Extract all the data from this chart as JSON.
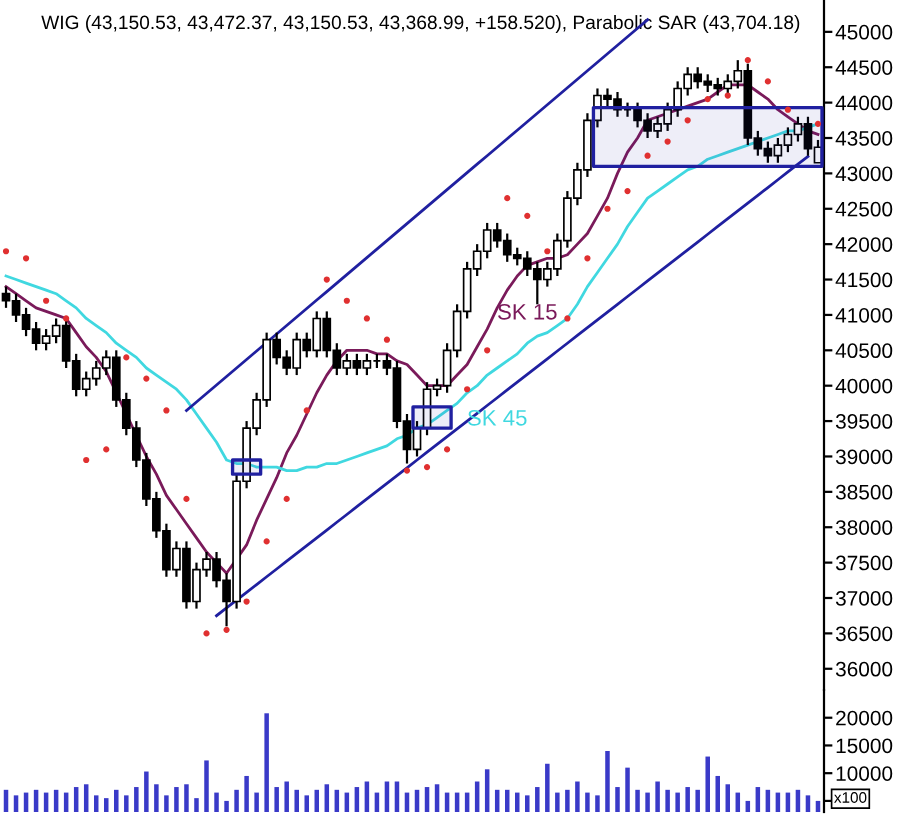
{
  "chart_data": [
    {
      "type": "candlestick",
      "title": "WIG (43,150.53, 43,472.37, 43,150.53, 43,368.99, +158.520), Parabolic SAR (43,704.18)",
      "color": "#000000",
      "tick_labels": "y",
      "categories": [
        null,
        null,
        null,
        null,
        null,
        null,
        null,
        null,
        null,
        null,
        null,
        null,
        null,
        null,
        null,
        null,
        null,
        null,
        null,
        null,
        null,
        null,
        null,
        null,
        null,
        null,
        null,
        null,
        null,
        null,
        null,
        null,
        null,
        null,
        null,
        null,
        null,
        null,
        null,
        null,
        null,
        null,
        null,
        null,
        null,
        null,
        null,
        null,
        null,
        null,
        null,
        null,
        null,
        null,
        null,
        null,
        null,
        null,
        null,
        null,
        null,
        null,
        null,
        null,
        null,
        null,
        null,
        null,
        null,
        null,
        null,
        null,
        null,
        null,
        null,
        null,
        null,
        null,
        null,
        null,
        null,
        null
      ],
      "ohlc": [
        [
          41300,
          41400,
          41100,
          41200
        ],
        [
          41200,
          41300,
          40900,
          41000
        ],
        [
          41000,
          41100,
          40700,
          40800
        ],
        [
          40800,
          40900,
          40500,
          40600
        ],
        [
          40600,
          40800,
          40500,
          40700
        ],
        [
          40700,
          40950,
          40600,
          40850
        ],
        [
          40850,
          40950,
          40250,
          40350
        ],
        [
          40350,
          40450,
          39850,
          39950
        ],
        [
          39950,
          40200,
          39850,
          40100
        ],
        [
          40100,
          40350,
          40000,
          40250
        ],
        [
          40250,
          40500,
          40150,
          40400
        ],
        [
          40400,
          40500,
          39700,
          39800
        ],
        [
          39800,
          39900,
          39300,
          39400
        ],
        [
          39400,
          39500,
          38850,
          38950
        ],
        [
          38950,
          39050,
          38300,
          38400
        ],
        [
          38400,
          38500,
          37850,
          37950
        ],
        [
          37950,
          38050,
          37300,
          37400
        ],
        [
          37400,
          37800,
          37300,
          37700
        ],
        [
          37700,
          37800,
          36850,
          36950
        ],
        [
          36950,
          37500,
          36850,
          37400
        ],
        [
          37400,
          37650,
          37300,
          37550
        ],
        [
          37550,
          37650,
          37150,
          37250
        ],
        [
          37250,
          37350,
          36600,
          36950
        ],
        [
          36950,
          38750,
          36850,
          38650
        ],
        [
          38650,
          39500,
          38550,
          39400
        ],
        [
          39400,
          39900,
          39300,
          39800
        ],
        [
          39800,
          40750,
          39700,
          40650
        ],
        [
          40650,
          40750,
          40300,
          40400
        ],
        [
          40400,
          40500,
          40150,
          40250
        ],
        [
          40250,
          40750,
          40150,
          40650
        ],
        [
          40650,
          40750,
          40400,
          40500
        ],
        [
          40500,
          41050,
          40400,
          40950
        ],
        [
          40950,
          41050,
          40400,
          40500
        ],
        [
          40500,
          40600,
          40150,
          40250
        ],
        [
          40250,
          40450,
          40150,
          40350
        ],
        [
          40350,
          40450,
          40150,
          40250
        ],
        [
          40250,
          40450,
          40150,
          40350
        ],
        [
          40350,
          40450,
          40250,
          40350
        ],
        [
          40350,
          40450,
          40150,
          40250
        ],
        [
          40250,
          40350,
          39400,
          39500
        ],
        [
          39500,
          39600,
          38900,
          39100
        ],
        [
          39100,
          39500,
          39000,
          39400
        ],
        [
          39400,
          40050,
          39300,
          39950
        ],
        [
          39950,
          40100,
          39850,
          40000
        ],
        [
          40000,
          40600,
          39900,
          40500
        ],
        [
          40500,
          41150,
          40400,
          41050
        ],
        [
          41050,
          41750,
          40950,
          41650
        ],
        [
          41650,
          42000,
          41550,
          41900
        ],
        [
          41900,
          42300,
          41800,
          42200
        ],
        [
          42200,
          42300,
          41950,
          42050
        ],
        [
          42050,
          42150,
          41750,
          41850
        ],
        [
          41850,
          41950,
          41700,
          41800
        ],
        [
          41800,
          41900,
          41550,
          41650
        ],
        [
          41650,
          41750,
          41150,
          41500
        ],
        [
          41500,
          41750,
          41400,
          41650
        ],
        [
          41650,
          42150,
          41550,
          42050
        ],
        [
          42050,
          42750,
          41950,
          42650
        ],
        [
          42650,
          43150,
          42550,
          43050
        ],
        [
          43050,
          43850,
          42950,
          43750
        ],
        [
          43750,
          44200,
          43650,
          44100
        ],
        [
          44100,
          44200,
          43950,
          44050
        ],
        [
          44050,
          44150,
          43800,
          43900
        ],
        [
          43900,
          44000,
          43800,
          43900
        ],
        [
          43900,
          44000,
          43650,
          43750
        ],
        [
          43750,
          43850,
          43500,
          43600
        ],
        [
          43600,
          43800,
          43500,
          43700
        ],
        [
          43700,
          44000,
          43600,
          43900
        ],
        [
          43900,
          44300,
          43800,
          44200
        ],
        [
          44200,
          44500,
          44100,
          44400
        ],
        [
          44400,
          44500,
          44200,
          44300
        ],
        [
          44300,
          44400,
          44150,
          44250
        ],
        [
          44250,
          44350,
          44100,
          44200
        ],
        [
          44200,
          44400,
          44100,
          44300
        ],
        [
          44300,
          44600,
          44200,
          44450
        ],
        [
          44450,
          44550,
          43400,
          43500
        ],
        [
          43500,
          43600,
          43250,
          43350
        ],
        [
          43350,
          43450,
          43150,
          43250
        ],
        [
          43250,
          43500,
          43150,
          43400
        ],
        [
          43400,
          43650,
          43300,
          43550
        ],
        [
          43550,
          43800,
          43450,
          43700
        ],
        [
          43700,
          43800,
          43250,
          43350
        ],
        [
          43150.53,
          43472.37,
          43150.53,
          43368.99
        ]
      ],
      "ylim": [
        35700,
        45450
      ],
      "yticks": [
        36000,
        36500,
        37000,
        37500,
        38000,
        38500,
        39000,
        39500,
        40000,
        40500,
        41000,
        41500,
        42000,
        42500,
        43000,
        43500,
        44000,
        44500,
        45000
      ],
      "series": [
        {
          "name": "SK 15",
          "type": "line",
          "color": "#7a1a5a",
          "values": [
            41400,
            41300,
            41200,
            41100,
            41050,
            41000,
            40950,
            40750,
            40550,
            40400,
            40200,
            39900,
            39600,
            39300,
            39000,
            38750,
            38450,
            38250,
            38050,
            37850,
            37650,
            37500,
            37350,
            37550,
            37750,
            38100,
            38400,
            38700,
            39050,
            39300,
            39600,
            39900,
            40150,
            40350,
            40500,
            40500,
            40500,
            40450,
            40450,
            40350,
            40300,
            40150,
            40000,
            40000,
            40000,
            40150,
            40300,
            40550,
            40800,
            41100,
            41350,
            41550,
            41700,
            41750,
            41800,
            41800,
            41850,
            42000,
            42150,
            42400,
            42650,
            43000,
            43300,
            43500,
            43750,
            43800,
            43850,
            43900,
            43950,
            44000,
            44050,
            44150,
            44250,
            44250,
            44250,
            44150,
            44050,
            43900,
            43800,
            43700,
            43600,
            43550
          ]
        },
        {
          "name": "SK 45",
          "type": "line",
          "color": "#40d8e0",
          "values": [
            41550,
            41500,
            41450,
            41400,
            41350,
            41300,
            41200,
            41100,
            40950,
            40850,
            40750,
            40600,
            40500,
            40400,
            40250,
            40150,
            40050,
            39950,
            39800,
            39600,
            39400,
            39200,
            38950,
            38900,
            38900,
            38850,
            38850,
            38850,
            38800,
            38800,
            38850,
            38850,
            38900,
            38900,
            38950,
            39000,
            39050,
            39100,
            39150,
            39250,
            39300,
            39400,
            39450,
            39550,
            39650,
            39750,
            39900,
            40000,
            40150,
            40250,
            40350,
            40450,
            40600,
            40700,
            40750,
            40850,
            40950,
            41150,
            41400,
            41600,
            41800,
            42000,
            42250,
            42450,
            42650,
            42750,
            42850,
            42950,
            43050,
            43100,
            43200,
            43250,
            43300,
            43350,
            43400,
            43450,
            43500,
            43550,
            43600,
            43600,
            43650,
            43700
          ]
        },
        {
          "type": "scatter",
          "marker": "circle",
          "color": "#e03030",
          "values": [
            41900,
            null,
            41800,
            null,
            41200,
            null,
            40950,
            null,
            38950,
            null,
            39100,
            null,
            40400,
            null,
            40100,
            null,
            39650,
            null,
            38400,
            null,
            36500,
            null,
            36550,
            null,
            36950,
            null,
            37800,
            null,
            38400,
            null,
            39650,
            null,
            41500,
            null,
            41200,
            null,
            40950,
            null,
            40650,
            null,
            38800,
            null,
            38850,
            null,
            39100,
            null,
            39950,
            null,
            40500,
            null,
            42650,
            null,
            42400,
            null,
            41900,
            null,
            40950,
            null,
            41800,
            null,
            42500,
            null,
            42750,
            null,
            43250,
            null,
            43450,
            null,
            43750,
            null,
            44050,
            null,
            44100,
            null,
            44600,
            null,
            44300,
            null,
            43900,
            null,
            null,
            43700
          ]
        },
        {
          "type": "line",
          "color": "#2020a0",
          "values": [
            null,
            null,
            null,
            null,
            null,
            null,
            null,
            null,
            null,
            null,
            null,
            null,
            null,
            null,
            null,
            null,
            null,
            null,
            39650,
            39770,
            39890,
            40010,
            40130,
            40250,
            40370,
            40490,
            40610,
            40730,
            40850,
            40970,
            41090,
            41210,
            41330,
            41450,
            41570,
            41690,
            41810,
            41930,
            42050,
            42170,
            42290,
            42410,
            42530,
            42650,
            42770,
            42890,
            43010,
            43130,
            43250,
            43370,
            43490,
            43610,
            43730,
            43850,
            43970,
            44090,
            44210,
            44330,
            44450,
            44570,
            44690,
            44810,
            44930,
            45050,
            45170,
            null,
            null,
            null,
            null,
            null,
            null,
            null,
            null,
            null,
            null,
            null,
            null,
            null,
            null,
            null,
            null,
            null
          ]
        },
        {
          "type": "line",
          "color": "#2020a0",
          "values": [
            null,
            null,
            null,
            null,
            null,
            null,
            null,
            null,
            null,
            null,
            null,
            null,
            null,
            null,
            null,
            null,
            null,
            null,
            null,
            null,
            null,
            36750,
            36860,
            36970,
            37080,
            37190,
            37300,
            37410,
            37520,
            37630,
            37740,
            37850,
            37960,
            38070,
            38180,
            38290,
            38400,
            38510,
            38620,
            38730,
            38840,
            38950,
            39060,
            39170,
            39280,
            39390,
            39500,
            39610,
            39720,
            39830,
            39940,
            40050,
            40160,
            40270,
            40380,
            40490,
            40600,
            40710,
            40820,
            40930,
            41040,
            41150,
            41260,
            41370,
            41480,
            41590,
            41700,
            41810,
            41920,
            42030,
            42140,
            42250,
            42360,
            42470,
            42580,
            42690,
            42800,
            42910,
            43020,
            43130,
            43240,
            null
          ]
        },
        {
          "type": "line",
          "color": "#2020a0",
          "values": [
            null,
            null,
            null,
            null,
            null,
            null,
            null,
            null,
            null,
            null,
            null,
            null,
            null,
            null,
            null,
            null,
            null,
            null,
            null,
            null,
            null,
            null,
            null,
            null,
            null,
            null,
            null,
            null,
            null,
            null,
            null,
            null,
            null,
            null,
            null,
            null,
            null,
            null,
            null,
            null,
            null,
            null,
            null,
            null,
            null,
            null,
            null,
            null,
            null,
            null,
            null,
            null,
            null,
            null,
            null,
            null,
            null,
            null,
            null,
            null,
            null,
            null,
            null,
            null,
            null,
            null,
            null,
            null,
            null,
            null,
            null,
            null,
            null,
            null,
            null,
            null,
            null,
            null,
            null,
            null,
            null,
            null
          ],
          "lower": [
            null,
            null,
            null,
            null,
            null,
            null,
            null,
            null,
            null,
            null,
            null,
            null,
            null,
            null,
            null,
            null,
            null,
            null,
            null,
            null,
            null,
            null,
            null,
            38750,
            38750,
            38750,
            null,
            null,
            null,
            null,
            null,
            null,
            null,
            null,
            null,
            null,
            null,
            null,
            null,
            null,
            null,
            null,
            null,
            null,
            null,
            null,
            null,
            null,
            null,
            null,
            null,
            null,
            null,
            null,
            null,
            null,
            null,
            null,
            null,
            null,
            null,
            null,
            null,
            null,
            null,
            null,
            null,
            null,
            null,
            null,
            null,
            null,
            null,
            null,
            null,
            null,
            null,
            null,
            null,
            null,
            null,
            null
          ],
          "upper": [
            null,
            null,
            null,
            null,
            null,
            null,
            null,
            null,
            null,
            null,
            null,
            null,
            null,
            null,
            null,
            null,
            null,
            null,
            null,
            null,
            null,
            null,
            null,
            38950,
            38950,
            38950,
            null,
            null,
            null,
            null,
            null,
            null,
            null,
            null,
            null,
            null,
            null,
            null,
            null,
            null,
            null,
            null,
            null,
            null,
            null,
            null,
            null,
            null,
            null,
            null,
            null,
            null,
            null,
            null,
            null,
            null,
            null,
            null,
            null,
            null,
            null,
            null,
            null,
            null,
            null,
            null,
            null,
            null,
            null,
            null,
            null,
            null,
            null,
            null,
            null,
            null,
            null,
            null,
            null,
            null,
            null,
            null
          ]
        },
        {
          "type": "line",
          "color": "#2020a0",
          "values": [
            null,
            null,
            null,
            null,
            null,
            null,
            null,
            null,
            null,
            null,
            null,
            null,
            null,
            null,
            null,
            null,
            null,
            null,
            null,
            null,
            null,
            null,
            null,
            null,
            null,
            null,
            null,
            null,
            null,
            null,
            null,
            null,
            null,
            null,
            null,
            null,
            null,
            null,
            null,
            null,
            null,
            null,
            null,
            null,
            null,
            null,
            null,
            null,
            null,
            null,
            null,
            null,
            null,
            null,
            null,
            null,
            null,
            null,
            null,
            null,
            null,
            null,
            null,
            null,
            null,
            null,
            null,
            null,
            null,
            null,
            null,
            null,
            null,
            null,
            null,
            null,
            null,
            null,
            null,
            null,
            null,
            null
          ],
          "lower": [
            null,
            null,
            null,
            null,
            null,
            null,
            null,
            null,
            null,
            null,
            null,
            null,
            null,
            null,
            null,
            null,
            null,
            null,
            null,
            null,
            null,
            null,
            null,
            null,
            null,
            null,
            null,
            null,
            null,
            null,
            null,
            null,
            null,
            null,
            null,
            null,
            null,
            null,
            null,
            null,
            null,
            39400,
            39400,
            39400,
            39400,
            null,
            null,
            null,
            null,
            null,
            null,
            null,
            null,
            null,
            null,
            null,
            null,
            null,
            null,
            null,
            null,
            null,
            null,
            null,
            null,
            null,
            null,
            null,
            null,
            null,
            null,
            null,
            null,
            null,
            null,
            null,
            null,
            null,
            null,
            null,
            null,
            null
          ],
          "upper": [
            null,
            null,
            null,
            null,
            null,
            null,
            null,
            null,
            null,
            null,
            null,
            null,
            null,
            null,
            null,
            null,
            null,
            null,
            null,
            null,
            null,
            null,
            null,
            null,
            null,
            null,
            null,
            null,
            null,
            null,
            null,
            null,
            null,
            null,
            null,
            null,
            null,
            null,
            null,
            null,
            null,
            39700,
            39700,
            39700,
            39700,
            null,
            null,
            null,
            null,
            null,
            null,
            null,
            null,
            null,
            null,
            null,
            null,
            null,
            null,
            null,
            null,
            null,
            null,
            null,
            null,
            null,
            null,
            null,
            null,
            null,
            null,
            null,
            null,
            null,
            null,
            null,
            null,
            null,
            null,
            null,
            null,
            null
          ]
        },
        {
          "type": "line",
          "color": "#2020a0",
          "values": [
            null,
            null,
            null,
            null,
            null,
            null,
            null,
            null,
            null,
            null,
            null,
            null,
            null,
            null,
            null,
            null,
            null,
            null,
            null,
            null,
            null,
            null,
            null,
            null,
            null,
            null,
            null,
            null,
            null,
            null,
            null,
            null,
            null,
            null,
            null,
            null,
            null,
            null,
            null,
            null,
            null,
            null,
            null,
            null,
            null,
            null,
            null,
            null,
            null,
            null,
            null,
            null,
            null,
            null,
            null,
            null,
            null,
            null,
            null,
            null,
            null,
            null,
            null,
            null,
            null,
            null,
            null,
            null,
            null,
            null,
            null,
            null,
            null,
            null,
            null,
            null,
            null,
            null,
            null,
            null,
            null,
            null
          ],
          "lower": [
            null,
            null,
            null,
            null,
            null,
            null,
            null,
            null,
            null,
            null,
            null,
            null,
            null,
            null,
            null,
            null,
            null,
            null,
            null,
            null,
            null,
            null,
            null,
            null,
            null,
            null,
            null,
            null,
            null,
            null,
            null,
            null,
            null,
            null,
            null,
            null,
            null,
            null,
            null,
            null,
            null,
            null,
            null,
            null,
            null,
            null,
            null,
            null,
            null,
            null,
            null,
            null,
            null,
            null,
            null,
            null,
            null,
            null,
            null,
            43100,
            43100,
            43100,
            43100,
            43100,
            43100,
            43100,
            43100,
            43100,
            43100,
            43100,
            43100,
            43100,
            43100,
            43100,
            43100,
            43100,
            43100,
            43100,
            43100,
            43100,
            43100,
            43100
          ],
          "upper": [
            null,
            null,
            null,
            null,
            null,
            null,
            null,
            null,
            null,
            null,
            null,
            null,
            null,
            null,
            null,
            null,
            null,
            null,
            null,
            null,
            null,
            null,
            null,
            null,
            null,
            null,
            null,
            null,
            null,
            null,
            null,
            null,
            null,
            null,
            null,
            null,
            null,
            null,
            null,
            null,
            null,
            null,
            null,
            null,
            null,
            null,
            null,
            null,
            null,
            null,
            null,
            null,
            null,
            null,
            null,
            null,
            null,
            null,
            null,
            43930,
            43930,
            43930,
            43930,
            43930,
            43930,
            43930,
            43930,
            43930,
            43930,
            43930,
            43930,
            43930,
            43930,
            43930,
            43930,
            43930,
            43930,
            43930,
            43930,
            43930,
            43930,
            43930
          ]
        }
      ]
    },
    {
      "type": "bar",
      "color": "#3a3ac8",
      "tick_labels": "y",
      "annotations": [
        "x100"
      ],
      "categories": [
        null,
        null,
        null,
        null,
        null,
        null,
        null,
        null,
        null,
        null,
        null,
        null,
        null,
        null,
        null,
        null,
        null,
        null,
        null,
        null,
        null,
        null,
        null,
        null,
        null,
        null,
        null,
        null,
        null,
        null,
        null,
        null,
        null,
        null,
        null,
        null,
        null,
        null,
        null,
        null,
        null,
        null,
        null,
        null,
        null,
        null,
        null,
        null,
        null,
        null,
        null,
        null,
        null,
        null,
        null,
        null,
        null,
        null,
        null,
        null,
        null,
        null,
        null,
        null,
        null,
        null,
        null,
        null,
        null,
        null,
        null,
        null,
        null,
        null,
        null,
        null,
        null,
        null,
        null,
        null,
        null,
        null
      ],
      "values": [
        7000,
        6000,
        6500,
        7000,
        6500,
        7000,
        6500,
        7500,
        8000,
        6000,
        5500,
        7000,
        6000,
        7500,
        10300,
        8000,
        6000,
        7500,
        8000,
        5500,
        12300,
        6500,
        5000,
        7000,
        9500,
        6500,
        20800,
        7500,
        8500,
        7000,
        6000,
        7000,
        8000,
        7000,
        6500,
        7500,
        8500,
        6500,
        8500,
        8500,
        6500,
        7000,
        7500,
        8000,
        6500,
        6500,
        6500,
        8500,
        10700,
        7000,
        7000,
        6500,
        6000,
        7500,
        11700,
        6500,
        7000,
        8500,
        6500,
        6000,
        14000,
        7500,
        11000,
        7000,
        6500,
        8500,
        7000,
        6500,
        7500,
        7000,
        13000,
        9500,
        8000,
        6500,
        5000,
        7500,
        7000,
        6500,
        6500,
        7000,
        6000,
        5000
      ],
      "ylim": [
        3000,
        25000
      ],
      "yticks": [
        {
          "value": 5000,
          "label": null
        },
        10000,
        15000,
        20000
      ]
    }
  ]
}
